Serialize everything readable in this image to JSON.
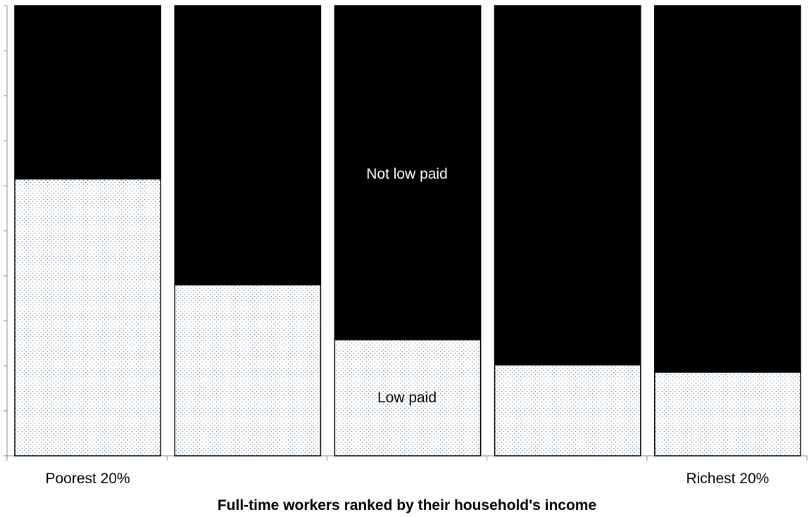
{
  "chart_data": {
    "type": "bar",
    "stacked": true,
    "orientation": "vertical",
    "categories": [
      "Poorest 20%",
      "",
      "",
      "",
      "Richest 20%"
    ],
    "series": [
      {
        "name": "Low paid",
        "values": [
          61.5,
          38.0,
          25.8,
          20.2,
          18.6
        ],
        "color": "#ffffff",
        "pattern": "dotted"
      },
      {
        "name": "Not low paid",
        "values": [
          38.5,
          62.0,
          74.2,
          79.8,
          81.4
        ],
        "color": "#000000"
      }
    ],
    "ylim": [
      0,
      100
    ],
    "y_tick_count": 10,
    "y_tick_labels_shown": false,
    "xlabel": "Full-time workers ranked by their household's income",
    "ylabel": "",
    "grid": false,
    "legend": "none"
  }
}
